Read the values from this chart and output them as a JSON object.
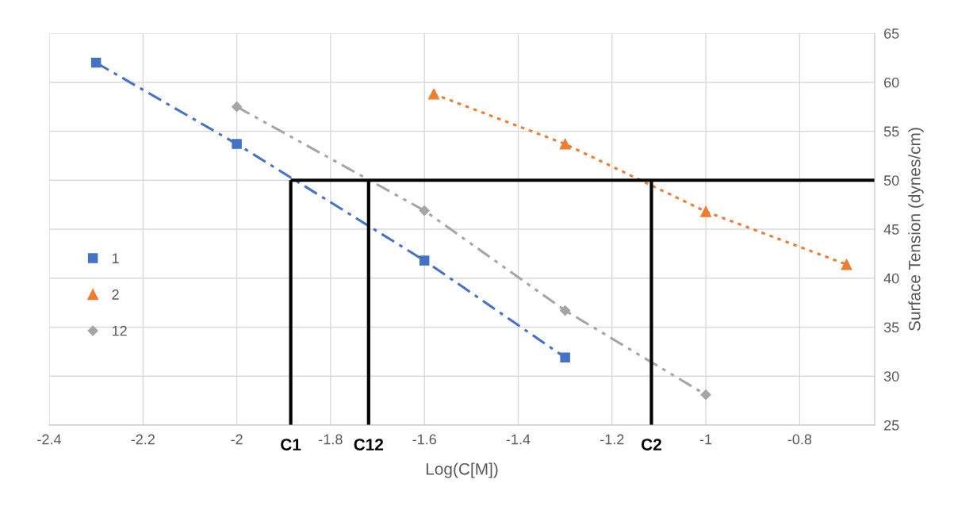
{
  "chart_data": {
    "type": "line",
    "xlabel": "Log(C[M])",
    "ylabel": "Surface Tension (dynes/cm)",
    "xlim": [
      -2.4,
      -0.64
    ],
    "xticks": [
      -2.4,
      -2.2,
      -2,
      -1.8,
      -1.6,
      -1.4,
      -1.2,
      -1,
      -0.8
    ],
    "ylim": [
      25,
      65
    ],
    "yticks": [
      25,
      30,
      35,
      40,
      45,
      50,
      55,
      60,
      65
    ],
    "grid": true,
    "legend": "left",
    "series": [
      {
        "name": "1",
        "color": "#4472c4",
        "marker": "square",
        "line_style": "dashdot",
        "x": [
          -2.3,
          -2,
          -1.6,
          -1.3
        ],
        "values": [
          62,
          53.7,
          41.8,
          31.9
        ]
      },
      {
        "name": "2",
        "color": "#ed7d31",
        "marker": "triangle",
        "line_style": "dotted",
        "x": [
          -1.58,
          -1.3,
          -1,
          -0.7
        ],
        "values": [
          58.8,
          53.7,
          46.8,
          41.4
        ]
      },
      {
        "name": "12",
        "color": "#a5a5a5",
        "marker": "diamond",
        "line_style": "dashdotdot",
        "x": [
          -2,
          -1.6,
          -1.3,
          -1
        ],
        "values": [
          57.5,
          46.9,
          36.7,
          28.1
        ]
      }
    ],
    "ref_lines": [
      {
        "axis": "y",
        "value": 50,
        "color": "#000000"
      },
      {
        "axis": "x",
        "value": -1.885,
        "label": "C1",
        "color": "#000000"
      },
      {
        "axis": "x",
        "value": -1.719,
        "label": "C12",
        "color": "#000000"
      },
      {
        "axis": "x",
        "value": -1.116,
        "label": "C2",
        "color": "#000000"
      }
    ]
  }
}
